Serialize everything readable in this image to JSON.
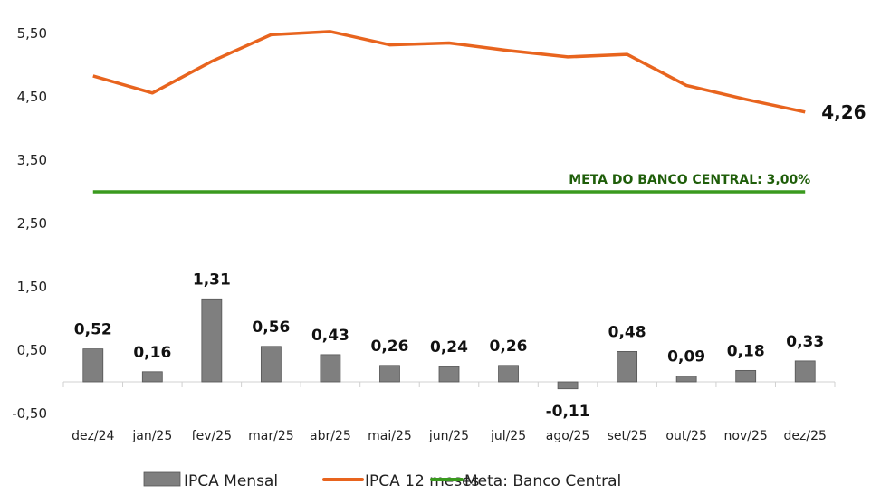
{
  "chart_data": {
    "type": "bar+line",
    "categories": [
      "dez/24",
      "jan/25",
      "fev/25",
      "mar/25",
      "abr/25",
      "mai/25",
      "jun/25",
      "jul/25",
      "ago/25",
      "set/25",
      "out/25",
      "nov/25",
      "dez/25"
    ],
    "series": [
      {
        "name": "IPCA Mensal",
        "type": "bar",
        "color": "#7f7f7f",
        "values": [
          0.52,
          0.16,
          1.31,
          0.56,
          0.43,
          0.26,
          0.24,
          0.26,
          -0.11,
          0.48,
          0.09,
          0.18,
          0.33
        ],
        "labels": [
          "0,52",
          "0,16",
          "1,31",
          "0,56",
          "0,43",
          "0,26",
          "0,24",
          "0,26",
          "-0,11",
          "0,48",
          "0,09",
          "0,18",
          "0,33"
        ]
      },
      {
        "name": "IPCA 12 meses",
        "type": "line",
        "color": "#e8641e",
        "values": [
          4.83,
          4.56,
          5.06,
          5.48,
          5.53,
          5.32,
          5.35,
          5.23,
          5.13,
          5.17,
          4.68,
          4.46,
          4.26
        ],
        "end_label": "4,26"
      },
      {
        "name": "Meta: Banco Central",
        "type": "line",
        "color": "#3a9a1e",
        "values": [
          3,
          3,
          3,
          3,
          3,
          3,
          3,
          3,
          3,
          3,
          3,
          3,
          3
        ],
        "annotation": "META DO BANCO CENTRAL: 3,00%",
        "annotation_color": "#1f5e0a"
      }
    ],
    "yticks": [
      5.5,
      4.5,
      3.5,
      2.5,
      1.5,
      0.5,
      -0.5
    ],
    "ytick_labels": [
      "5,50",
      "4,50",
      "3,50",
      "2,50",
      "1,50",
      "0,50",
      "-0,50"
    ],
    "ylim": [
      -0.5,
      5.5
    ],
    "grid": false,
    "legend": "bottom",
    "title": "",
    "xlabel": "",
    "ylabel": ""
  }
}
